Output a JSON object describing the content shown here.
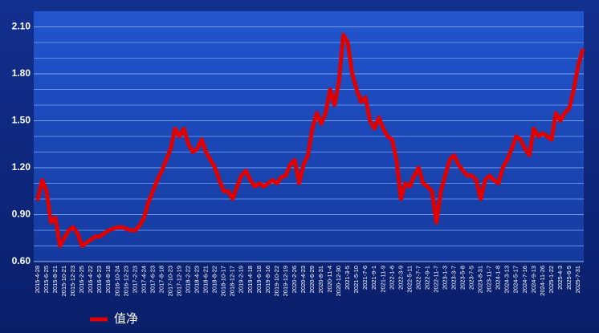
{
  "chart_data": {
    "type": "line",
    "categories": [
      "2015-4-28",
      null,
      "2015-6-25",
      null,
      "2015-8-21",
      null,
      "2015-10-21",
      null,
      "2015-12-23",
      null,
      "2016-2-25",
      null,
      "2016-4-22",
      null,
      "2016-6-23",
      null,
      "2016-8-18",
      null,
      "2016-10-24",
      null,
      "2016-12-23",
      null,
      "2017-2-23",
      null,
      "2017-4-24",
      null,
      "2017-6-23",
      null,
      "2017-8-18",
      null,
      "2017-10-23",
      null,
      "2017-12-19",
      null,
      "2018-2-22",
      null,
      "2018-4-23",
      null,
      "2018-6-21",
      null,
      "2018-8-22",
      null,
      "2018-10-17",
      null,
      "2018-12-17",
      null,
      "2019-2-19",
      null,
      "2019-4-18",
      null,
      "2019-6-18",
      null,
      "2019-8-16",
      null,
      "2019-10-22",
      null,
      "2019-12-19",
      null,
      "2020-2-26",
      null,
      "2020-4-23",
      null,
      "2020-6-29",
      null,
      "2020-8-31",
      null,
      "2020-11-4",
      null,
      "2020-12-30",
      null,
      "2021-3-5",
      null,
      "2021-5-10",
      null,
      "2021-7-6",
      null,
      "2021-9-1",
      null,
      "2021-11-9",
      null,
      "2022-1-6",
      null,
      "2022-3-9",
      null,
      "2022-5-11",
      null,
      "2022-7-7",
      null,
      "2022-9-1",
      null,
      "2022-11-7",
      null,
      "2023-1-3",
      null,
      "2023-3-7",
      null,
      "2023-5-8",
      null,
      "2023-7-5",
      null,
      "2023-8-31",
      null,
      "2023-11-7",
      null,
      "2024-1-8",
      null,
      "2024-3-13",
      null,
      "2024-5-17",
      null,
      "2024-7-16",
      null,
      "2024-9-13",
      null,
      "2024-11-26",
      null,
      "2025-1-22",
      null,
      "2025-4-3",
      null,
      "2025-6-5",
      null,
      "2025-7-31",
      null
    ],
    "series": [
      {
        "name": "值净",
        "color": "#e00000",
        "values": [
          1.0,
          1.12,
          1.05,
          0.85,
          0.88,
          0.7,
          0.75,
          0.8,
          0.82,
          0.78,
          0.7,
          0.72,
          0.74,
          0.76,
          0.76,
          0.78,
          0.8,
          0.81,
          0.82,
          0.82,
          0.81,
          0.8,
          0.8,
          0.83,
          0.88,
          0.98,
          1.05,
          1.12,
          1.18,
          1.25,
          1.32,
          1.45,
          1.4,
          1.45,
          1.35,
          1.3,
          1.32,
          1.38,
          1.3,
          1.25,
          1.2,
          1.12,
          1.05,
          1.05,
          1.0,
          1.08,
          1.15,
          1.18,
          1.12,
          1.08,
          1.1,
          1.08,
          1.1,
          1.12,
          1.1,
          1.14,
          1.15,
          1.22,
          1.25,
          1.1,
          1.22,
          1.28,
          1.45,
          1.55,
          1.48,
          1.55,
          1.7,
          1.6,
          1.75,
          2.05,
          2.0,
          1.8,
          1.7,
          1.62,
          1.65,
          1.5,
          1.45,
          1.52,
          1.45,
          1.4,
          1.38,
          1.25,
          1.0,
          1.1,
          1.08,
          1.15,
          1.2,
          1.1,
          1.08,
          1.05,
          0.85,
          1.05,
          1.15,
          1.25,
          1.28,
          1.22,
          1.18,
          1.15,
          1.15,
          1.12,
          1.0,
          1.12,
          1.15,
          1.12,
          1.1,
          1.2,
          1.25,
          1.32,
          1.4,
          1.38,
          1.32,
          1.28,
          1.45,
          1.4,
          1.42,
          1.4,
          1.38,
          1.55,
          1.5,
          1.55,
          1.58,
          1.7,
          1.85,
          1.95
        ]
      }
    ],
    "ylim": [
      0.6,
      2.2
    ],
    "yticks": [
      {
        "value": 0.6,
        "label": "0.60"
      },
      {
        "value": 0.9,
        "label": "0.90"
      },
      {
        "value": 1.2,
        "label": "1.20"
      },
      {
        "value": 1.5,
        "label": "1.50"
      },
      {
        "value": 1.8,
        "label": "1.80"
      },
      {
        "value": 2.1,
        "label": "2.10"
      }
    ],
    "minor_yticks": [
      0.7,
      0.8,
      1.0,
      1.1,
      1.3,
      1.4,
      1.6,
      1.7,
      1.9,
      2.0
    ],
    "grid": true,
    "legend": "bottom"
  }
}
